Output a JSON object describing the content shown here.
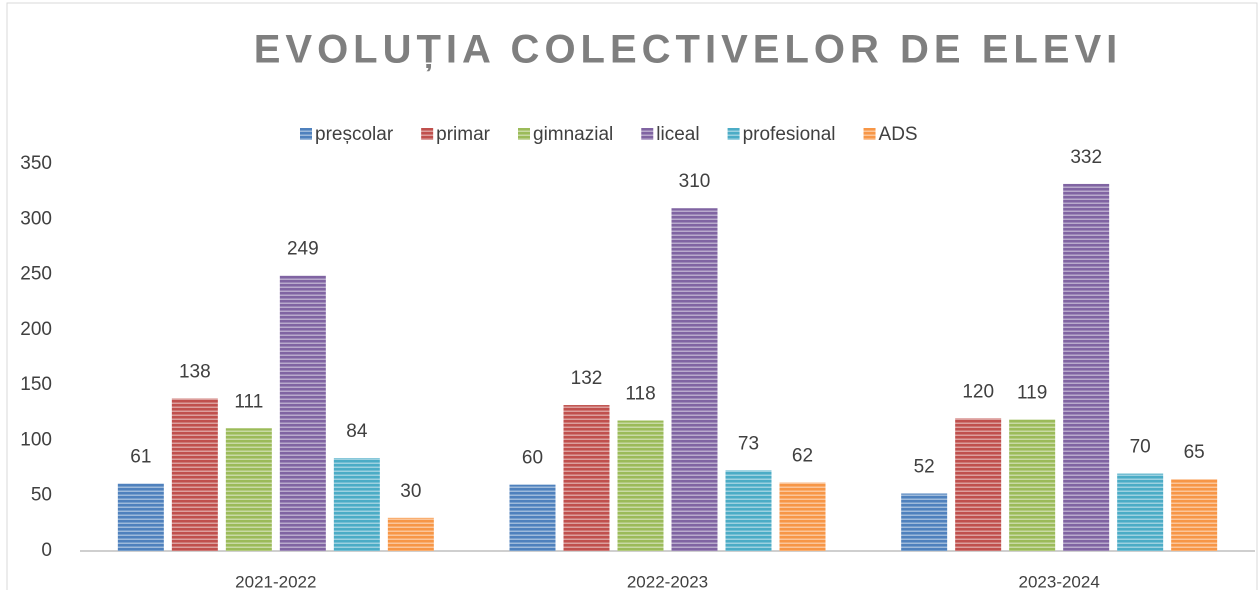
{
  "chart_data": {
    "type": "bar",
    "title": "EVOLUȚIA COLECTIVELOR DE ELEVI",
    "categories": [
      "2021-2022",
      "2022-2023",
      "2023-2024"
    ],
    "series": [
      {
        "name": "preșcolar",
        "color": "#4f81bd",
        "values": [
          61,
          60,
          52
        ]
      },
      {
        "name": "primar",
        "color": "#c0504d",
        "values": [
          138,
          132,
          120
        ]
      },
      {
        "name": "gimnazial",
        "color": "#9bbb59",
        "values": [
          111,
          118,
          119
        ]
      },
      {
        "name": "liceal",
        "color": "#8064a2",
        "values": [
          249,
          310,
          332
        ]
      },
      {
        "name": "profesional",
        "color": "#4bacc6",
        "values": [
          84,
          73,
          70
        ]
      },
      {
        "name": "ADS",
        "color": "#f79646",
        "values": [
          30,
          62,
          65
        ]
      }
    ],
    "ylim": [
      0,
      350
    ],
    "yticks": [
      0,
      50,
      100,
      150,
      200,
      250,
      300,
      350
    ],
    "grid": false,
    "legend": "top"
  }
}
